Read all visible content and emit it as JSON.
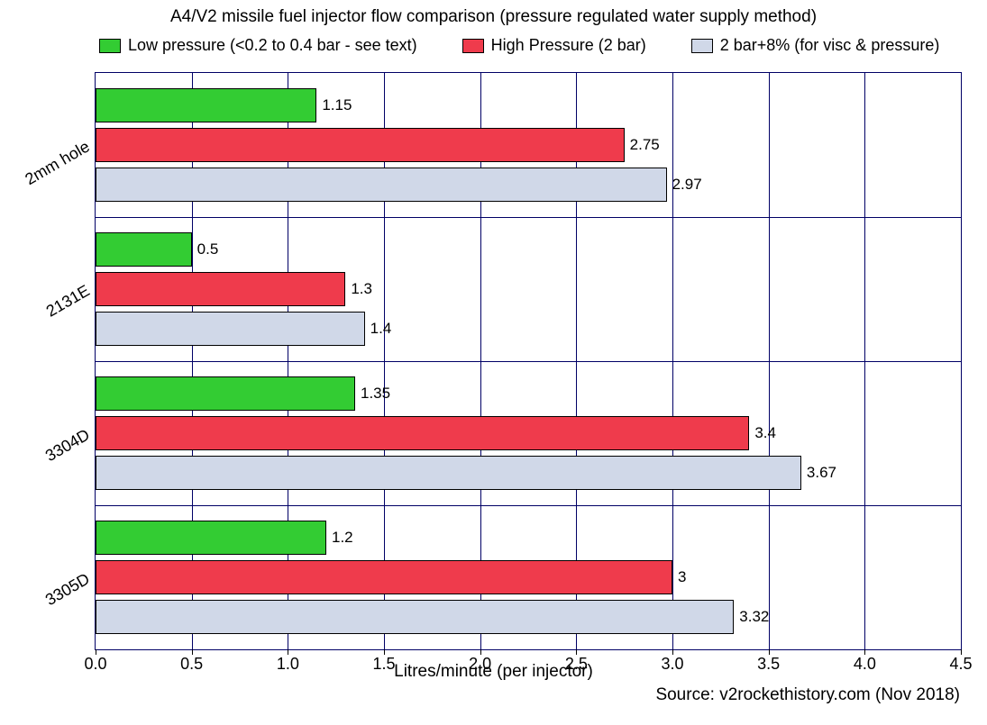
{
  "chart": {
    "type": "bar",
    "orientation": "horizontal",
    "title": "A4/V2 missile fuel injector flow comparison (pressure regulated water supply method)",
    "title_fontsize": 19,
    "x_axis_label": "Litres/minute (per injector)",
    "source": "Source: v2rockethistory.com (Nov 2018)",
    "background_color": "#ffffff",
    "grid_color": "#000066",
    "xlim": [
      0.0,
      4.5
    ],
    "xtick_step": 0.5,
    "xticks": [
      "0.0",
      "0.5",
      "1.0",
      "1.5",
      "2.0",
      "2.5",
      "3.0",
      "3.5",
      "4.0",
      "4.5"
    ],
    "categories": [
      "2mm hole",
      "2131E",
      "3304D",
      "3305D"
    ],
    "series": [
      {
        "name": "Low pressure (<0.2 to 0.4 bar - see text)",
        "color": "#33cc33"
      },
      {
        "name": "High Pressure (2 bar)",
        "color": "#ef3b4c"
      },
      {
        "name": "2 bar+8% (for visc & pressure)",
        "color": "#d0d8e8"
      }
    ],
    "data": {
      "2mm hole": {
        "low": 1.15,
        "high": 2.75,
        "adj": 2.97
      },
      "2131E": {
        "low": 0.5,
        "high": 1.3,
        "adj": 1.4
      },
      "3304D": {
        "low": 1.35,
        "high": 3.4,
        "adj": 3.67
      },
      "3305D": {
        "low": 1.2,
        "high": 3,
        "adj": 3.32
      }
    },
    "labels": {
      "2mm hole": {
        "low": "1.15",
        "high": "2.75",
        "adj": "2.97"
      },
      "2131E": {
        "low": "0.5",
        "high": "1.3",
        "adj": "1.4"
      },
      "3304D": {
        "low": "1.35",
        "high": "3.4",
        "adj": "3.67"
      },
      "3305D": {
        "low": "1.2",
        "high": "3",
        "adj": "3.32"
      }
    },
    "bar_border_color": "#000000",
    "bar_label_fontsize": 17,
    "axis_label_fontsize": 19,
    "tick_fontsize": 18,
    "legend_fontsize": 18,
    "y_category_rotation_deg": -30
  }
}
